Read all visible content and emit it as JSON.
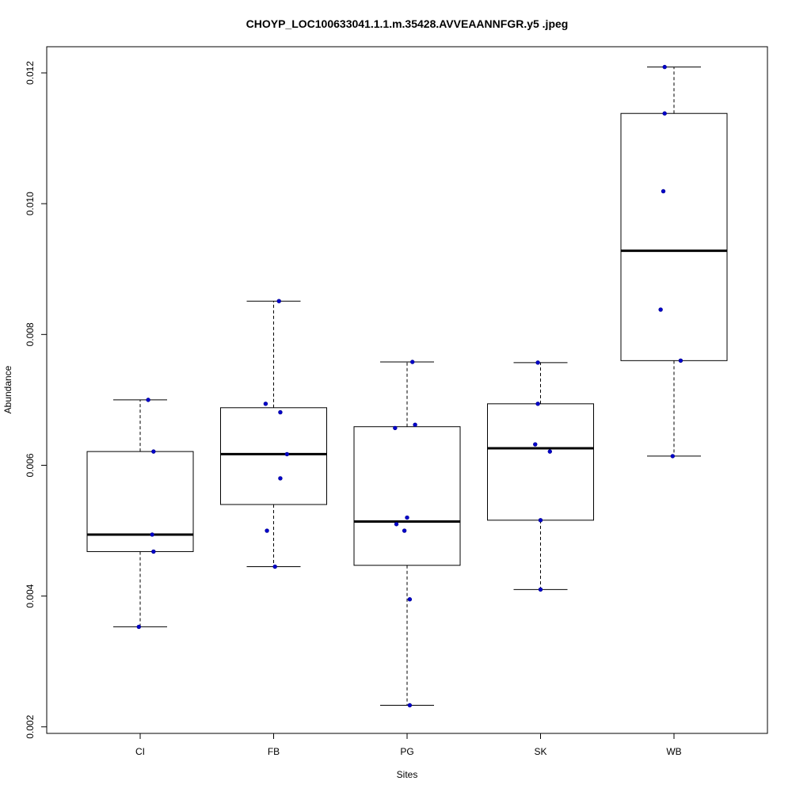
{
  "chart_data": {
    "type": "box",
    "title": "CHOYP_LOC100633041.1.1.m.35428.AVVEAANNFGR.y5 .jpeg",
    "xlabel": "Sites",
    "ylabel": "Abundance",
    "ylim": [
      0.0019,
      0.0124
    ],
    "y_ticks": [
      {
        "value": 0.002,
        "label": "0.002"
      },
      {
        "value": 0.004,
        "label": "0.004"
      },
      {
        "value": 0.006,
        "label": "0.006"
      },
      {
        "value": 0.008,
        "label": "0.008"
      },
      {
        "value": 0.01,
        "label": "0.010"
      },
      {
        "value": 0.012,
        "label": "0.012"
      }
    ],
    "categories": [
      "CI",
      "FB",
      "PG",
      "SK",
      "WB"
    ],
    "boxes": [
      {
        "category": "CI",
        "whisker_low": 0.00353,
        "q1": 0.00468,
        "median": 0.00494,
        "q3": 0.00621,
        "whisker_high": 0.007
      },
      {
        "category": "FB",
        "whisker_low": 0.00445,
        "q1": 0.0054,
        "median": 0.00617,
        "q3": 0.00688,
        "whisker_high": 0.00851
      },
      {
        "category": "PG",
        "whisker_low": 0.00233,
        "q1": 0.00447,
        "median": 0.00514,
        "q3": 0.00659,
        "whisker_high": 0.00758
      },
      {
        "category": "SK",
        "whisker_low": 0.0041,
        "q1": 0.00516,
        "median": 0.00626,
        "q3": 0.00694,
        "whisker_high": 0.00757
      },
      {
        "category": "WB",
        "whisker_low": 0.00614,
        "q1": 0.0076,
        "median": 0.00928,
        "q3": 0.01138,
        "whisker_high": 0.01209
      }
    ],
    "points": [
      {
        "category": "CI",
        "jitter": 0.06,
        "value": 0.007
      },
      {
        "category": "CI",
        "jitter": 0.1,
        "value": 0.00621
      },
      {
        "category": "CI",
        "jitter": 0.09,
        "value": 0.00494
      },
      {
        "category": "CI",
        "jitter": 0.1,
        "value": 0.00468
      },
      {
        "category": "CI",
        "jitter": -0.01,
        "value": 0.00353
      },
      {
        "category": "FB",
        "jitter": 0.04,
        "value": 0.00851
      },
      {
        "category": "FB",
        "jitter": -0.06,
        "value": 0.00694
      },
      {
        "category": "FB",
        "jitter": 0.05,
        "value": 0.00681
      },
      {
        "category": "FB",
        "jitter": 0.1,
        "value": 0.00617
      },
      {
        "category": "FB",
        "jitter": 0.05,
        "value": 0.0058
      },
      {
        "category": "FB",
        "jitter": -0.05,
        "value": 0.005
      },
      {
        "category": "FB",
        "jitter": 0.01,
        "value": 0.00445
      },
      {
        "category": "PG",
        "jitter": 0.04,
        "value": 0.00758
      },
      {
        "category": "PG",
        "jitter": 0.06,
        "value": 0.00662
      },
      {
        "category": "PG",
        "jitter": -0.09,
        "value": 0.00657
      },
      {
        "category": "PG",
        "jitter": 0.0,
        "value": 0.0052
      },
      {
        "category": "PG",
        "jitter": -0.08,
        "value": 0.0051
      },
      {
        "category": "PG",
        "jitter": -0.02,
        "value": 0.005
      },
      {
        "category": "PG",
        "jitter": 0.02,
        "value": 0.00395
      },
      {
        "category": "PG",
        "jitter": 0.02,
        "value": 0.00233
      },
      {
        "category": "SK",
        "jitter": -0.02,
        "value": 0.00757
      },
      {
        "category": "SK",
        "jitter": -0.02,
        "value": 0.00694
      },
      {
        "category": "SK",
        "jitter": -0.04,
        "value": 0.00632
      },
      {
        "category": "SK",
        "jitter": 0.07,
        "value": 0.00621
      },
      {
        "category": "SK",
        "jitter": 0.0,
        "value": 0.00516
      },
      {
        "category": "SK",
        "jitter": 0.0,
        "value": 0.0041
      },
      {
        "category": "WB",
        "jitter": -0.07,
        "value": 0.01209
      },
      {
        "category": "WB",
        "jitter": -0.07,
        "value": 0.01138
      },
      {
        "category": "WB",
        "jitter": -0.08,
        "value": 0.01019
      },
      {
        "category": "WB",
        "jitter": -0.1,
        "value": 0.00838
      },
      {
        "category": "WB",
        "jitter": 0.05,
        "value": 0.0076
      },
      {
        "category": "WB",
        "jitter": -0.01,
        "value": 0.00614
      }
    ],
    "point_color": "#0000cc",
    "grid": false,
    "legend": "none"
  }
}
